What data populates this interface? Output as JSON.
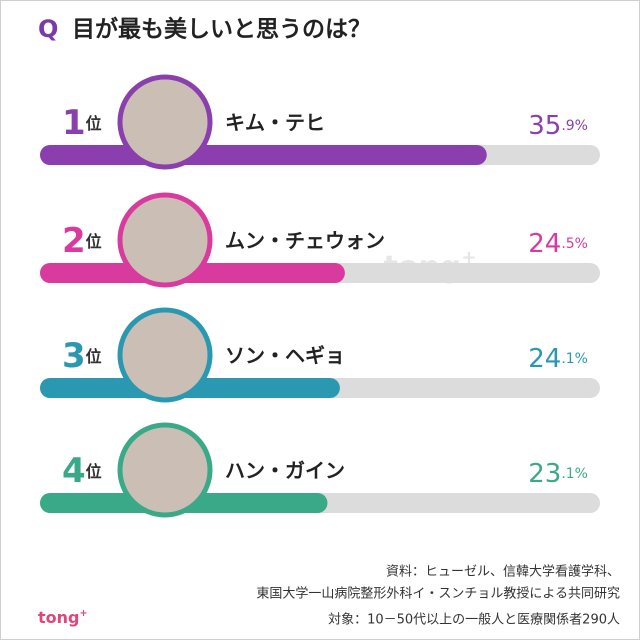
{
  "chart_data": {
    "type": "bar",
    "orientation": "horizontal",
    "title_prefix": "Q",
    "title": "目が最も美しいと思うのは？",
    "ranks": [
      "1位",
      "2位",
      "3位",
      "4位"
    ],
    "categories": [
      "キム・テヒ",
      "ムン・チェウォン",
      "ソン・ヘギョ",
      "ハン・ガイン"
    ],
    "values": [
      35.9,
      24.5,
      24.1,
      23.1
    ],
    "value_labels": [
      "35.9%",
      "24.5%",
      "24.1%",
      "23.1%"
    ],
    "colors": [
      "#8b3fae",
      "#d93a9e",
      "#2b98b2",
      "#3aa988"
    ],
    "track_color": "#dcdcdc",
    "xlim": [
      0,
      45
    ],
    "source": [
      "資料：ヒューゼル、信韓大学看護学科、",
      "東国大学一山病院整形外科イ・スンチョル教授による共同研究"
    ],
    "subject": "対象：10－50代以上の一般人と医療関係者290人",
    "logo": "tong+",
    "watermark": "tong+"
  }
}
